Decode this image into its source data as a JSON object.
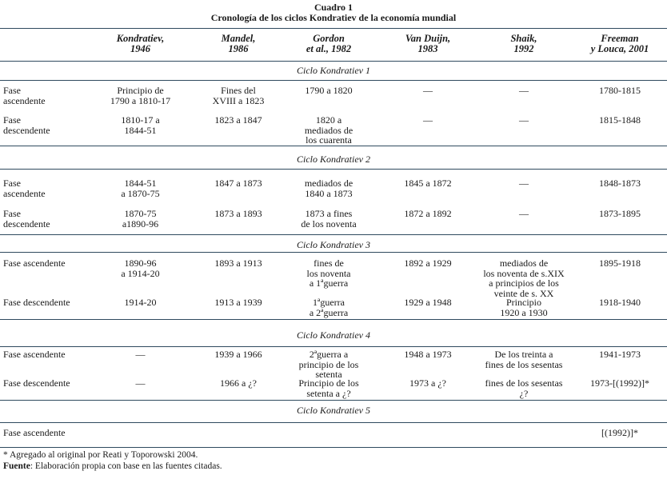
{
  "title": "Cuadro 1",
  "subtitle": "Cronología de los ciclos Kondratiev de la economía mundial",
  "columns": [
    "Kondratiev,\n1946",
    "Mandel,\n1986",
    "Gordon\net al., 1982",
    "Van Duijn,\n1983",
    "Shaik,\n1992",
    "Freeman\ny Louca, 2001"
  ],
  "cycles": [
    {
      "label": "Ciclo Kondratiev 1",
      "rows": [
        {
          "phase": "Fase\nascendente",
          "cells": [
            "Principio de\n1790 a 1810-17",
            "Fines del\nXVIII a 1823",
            "1790  a 1820",
            "—",
            "—",
            "1780-1815"
          ]
        },
        {
          "phase": "Fase\ndescendente",
          "cells": [
            "1810-17 a\n1844-51",
            "1823 a 1847",
            "1820 a\nmediados de\nlos cuarenta",
            "—",
            "—",
            "1815-1848"
          ]
        }
      ]
    },
    {
      "label": "Ciclo Kondratiev 2",
      "rows": [
        {
          "phase": "Fase\nascendente",
          "cells": [
            "1844-51\na 1870-75",
            "1847 a 1873",
            "mediados de\n1840 a 1873",
            "1845 a 1872",
            "—",
            "1848-1873"
          ]
        },
        {
          "phase": "Fase\ndescendente",
          "cells": [
            "1870-75\na1890-96",
            "1873 a 1893",
            "1873 a fines\nde los noventa",
            "1872 a 1892",
            "—",
            "1873-1895"
          ]
        }
      ]
    },
    {
      "label": "Ciclo Kondratiev 3",
      "rows": [
        {
          "phase": "Fase ascendente",
          "cells": [
            "1890-96\na 1914-20",
            "1893 a 1913",
            "fines de\nlos noventa\na 1ªguerra",
            "1892 a 1929",
            "mediados de\nlos noventa de s.XIX\na principios de los\nveinte de s. XX",
            "1895-1918"
          ]
        },
        {
          "phase": "Fase descendente",
          "cells": [
            "1914-20",
            "1913 a 1939",
            "1ªguerra\na 2ªguerra",
            "1929 a 1948",
            "Principio\n1920 a 1930",
            "1918-1940"
          ]
        }
      ]
    },
    {
      "label": "Ciclo Kondratiev 4",
      "rows": [
        {
          "phase": "Fase ascendente",
          "cells": [
            "—",
            "1939 a 1966",
            "2ªguerra a\nprincipio de los\nsetenta",
            "1948 a 1973",
            "De los treinta a\nfines de los sesentas",
            "1941-1973"
          ]
        },
        {
          "phase": "Fase descendente",
          "cells": [
            "—",
            "1966 a ¿?",
            "Principio de los\nsetenta a ¿?",
            "1973 a ¿?",
            "fines de los sesentas\n¿?",
            "1973-[(1992)]*"
          ]
        }
      ]
    },
    {
      "label": "Ciclo Kondratiev 5",
      "rows": [
        {
          "phase": "Fase ascendente",
          "cells": [
            "",
            "",
            "",
            "",
            "",
            "[(1992)]*"
          ]
        }
      ]
    }
  ],
  "footnote": "* Agregado al original por Reati y Toporowski 2004.",
  "source_label": "Fuente",
  "source_text": ": Elaboración propia con base en las fuentes citadas.",
  "colors": {
    "rule": "#2f4a5e",
    "text": "#1a1a1a"
  }
}
